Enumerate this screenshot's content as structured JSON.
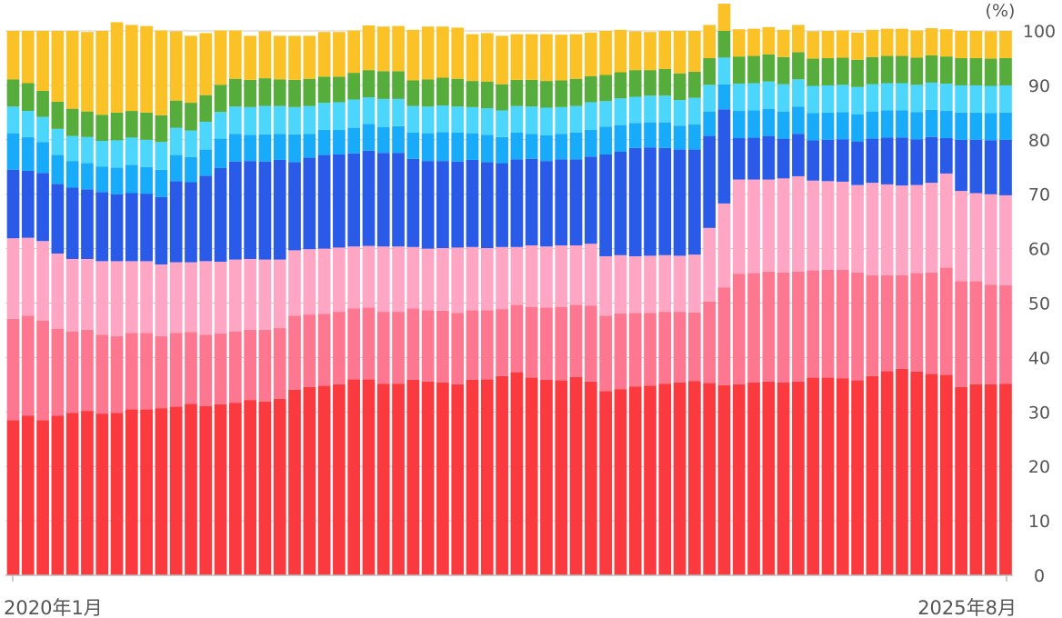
{
  "chart_data": {
    "type": "bar",
    "stacked": true,
    "normalized": true,
    "y_unit": "(%)",
    "ylim": [
      0,
      100
    ],
    "y_ticks": [
      0,
      10,
      20,
      30,
      40,
      50,
      60,
      70,
      80,
      90,
      100
    ],
    "x_start_label": "2020年1月",
    "x_end_label": "2025年8月",
    "grid": true,
    "legend": "none",
    "colors": [
      "#fa3a3e",
      "#fe7790",
      "#fea6c4",
      "#2a5ae8",
      "#17abf9",
      "#4dd6fb",
      "#56ad3c",
      "#fac226"
    ],
    "series": [
      {
        "values": [
          28.5,
          29.3,
          28.5,
          29.3,
          29.8,
          30.2,
          29.7,
          29.8,
          30.5,
          30.5,
          30.7,
          31.0,
          31.5,
          31.1,
          31.4,
          31.7,
          32.2,
          31.9,
          32.4,
          34.1,
          34.6,
          34.8,
          35.1,
          36.0,
          36.0,
          35.2,
          35.2,
          35.9,
          35.6,
          35.4,
          35.1,
          35.9,
          36.0,
          36.6,
          37.3,
          36.3,
          35.9,
          35.8,
          36.4,
          35.6,
          33.8,
          34.2,
          34.7,
          34.8,
          35.2,
          35.4,
          35.7,
          35.3,
          34.9,
          35.1,
          35.4,
          35.6,
          35.4,
          35.6,
          36.3,
          36.3,
          36.2,
          35.8,
          36.6,
          37.5,
          37.9,
          37.4,
          37.0,
          36.8,
          34.6,
          35.1,
          35.1,
          35.2
        ]
      },
      {
        "values": [
          18.6,
          18.4,
          18.3,
          16.0,
          15.0,
          14.9,
          14.5,
          14.1,
          14.0,
          14.0,
          13.2,
          13.5,
          13.2,
          13.1,
          13.0,
          13.1,
          12.9,
          13.2,
          13.0,
          13.6,
          13.3,
          13.2,
          13.3,
          13.0,
          13.2,
          13.2,
          13.2,
          13.1,
          13.1,
          13.2,
          13.1,
          12.8,
          12.7,
          12.3,
          12.4,
          13.0,
          13.3,
          13.5,
          13.3,
          13.9,
          13.9,
          13.9,
          13.5,
          13.4,
          13.2,
          13.0,
          12.6,
          15.0,
          18.0,
          20.3,
          20.1,
          20.2,
          20.2,
          20.2,
          19.7,
          19.8,
          19.9,
          19.8,
          18.5,
          17.6,
          17.2,
          18.1,
          18.6,
          19.7,
          19.4,
          18.9,
          18.3,
          18.1
        ]
      },
      {
        "values": [
          14.8,
          14.3,
          14.6,
          13.8,
          13.3,
          13.0,
          13.5,
          13.8,
          13.2,
          13.2,
          13.2,
          13.0,
          12.8,
          13.5,
          13.2,
          13.2,
          13.0,
          12.9,
          12.6,
          12.0,
          12.0,
          12.0,
          11.8,
          11.4,
          11.3,
          12.0,
          12.0,
          11.3,
          11.3,
          11.5,
          12.0,
          11.6,
          11.4,
          11.4,
          10.6,
          11.3,
          11.2,
          11.3,
          10.9,
          11.4,
          10.9,
          10.7,
          10.4,
          10.5,
          10.4,
          10.3,
          10.6,
          13.5,
          15.4,
          17.3,
          17.2,
          16.9,
          17.3,
          17.5,
          16.5,
          16.3,
          16.2,
          16.1,
          17.0,
          16.7,
          16.5,
          16.2,
          16.5,
          17.3,
          16.6,
          16.2,
          16.6,
          16.5
        ]
      },
      {
        "values": [
          12.6,
          12.3,
          12.5,
          12.8,
          13.1,
          12.8,
          12.7,
          12.3,
          12.5,
          12.4,
          12.4,
          14.9,
          14.7,
          15.7,
          17.2,
          18.0,
          18.0,
          18.0,
          18.3,
          16.2,
          16.8,
          17.2,
          17.1,
          17.1,
          17.5,
          17.2,
          17.2,
          16.2,
          16.1,
          16.0,
          15.8,
          16.0,
          15.8,
          15.4,
          16.1,
          15.9,
          15.7,
          15.8,
          15.8,
          16.0,
          18.7,
          19.0,
          19.9,
          19.9,
          19.7,
          19.5,
          19.3,
          16.9,
          17.3,
          7.6,
          7.7,
          8.0,
          7.3,
          7.8,
          7.4,
          7.6,
          7.8,
          8.0,
          8.1,
          8.6,
          8.8,
          8.4,
          8.4,
          6.5,
          9.4,
          9.8,
          9.9,
          10.2
        ]
      },
      {
        "values": [
          6.7,
          6.2,
          5.7,
          5.3,
          4.9,
          4.8,
          4.7,
          4.9,
          5.2,
          4.9,
          5.0,
          4.8,
          4.6,
          4.8,
          5.4,
          5.1,
          4.8,
          5.0,
          4.8,
          5.1,
          4.4,
          4.6,
          4.5,
          4.7,
          4.9,
          4.7,
          4.9,
          4.8,
          5.1,
          5.3,
          5.3,
          4.9,
          5.0,
          4.8,
          4.9,
          4.6,
          4.7,
          4.7,
          4.9,
          4.9,
          5.1,
          4.9,
          4.6,
          4.6,
          4.7,
          4.4,
          4.6,
          4.5,
          4.6,
          5.0,
          5.0,
          5.0,
          5.0,
          5.0,
          5.0,
          5.0,
          5.0,
          5.0,
          5.0,
          5.0,
          5.0,
          5.0,
          5.0,
          5.0,
          5.0,
          5.0,
          5.0,
          5.0
        ]
      },
      {
        "values": [
          4.9,
          4.8,
          4.6,
          4.8,
          4.6,
          4.8,
          4.7,
          5.0,
          5.0,
          5.0,
          5.1,
          5.0,
          4.9,
          5.1,
          4.9,
          5.0,
          5.1,
          5.2,
          5.1,
          5.0,
          5.1,
          5.0,
          5.1,
          5.2,
          4.9,
          5.2,
          5.0,
          4.9,
          4.9,
          4.9,
          4.8,
          4.8,
          4.9,
          4.9,
          4.9,
          5.0,
          5.1,
          4.9,
          4.9,
          5.1,
          4.7,
          4.9,
          4.8,
          4.9,
          4.9,
          4.7,
          4.9,
          4.9,
          4.9,
          5.0,
          5.0,
          5.0,
          5.0,
          5.0,
          5.0,
          5.0,
          5.0,
          5.0,
          5.0,
          5.0,
          5.0,
          5.0,
          5.0,
          5.0,
          5.0,
          5.0,
          5.0,
          5.0
        ]
      },
      {
        "values": [
          5.0,
          5.1,
          4.8,
          5.0,
          5.0,
          4.7,
          4.8,
          5.1,
          4.9,
          5.0,
          4.9,
          5.0,
          5.1,
          4.9,
          5.0,
          5.1,
          5.0,
          5.1,
          4.9,
          5.0,
          5.0,
          4.8,
          4.7,
          4.9,
          5.0,
          5.1,
          5.1,
          4.7,
          5.0,
          5.1,
          5.1,
          4.8,
          4.9,
          4.8,
          4.8,
          4.9,
          4.9,
          4.9,
          5.0,
          4.8,
          4.8,
          4.8,
          4.9,
          4.7,
          4.9,
          4.9,
          4.8,
          4.9,
          4.9,
          5.0,
          5.0,
          5.0,
          5.0,
          5.0,
          5.0,
          5.0,
          5.0,
          5.0,
          5.0,
          5.0,
          5.0,
          5.0,
          5.0,
          5.0,
          5.0,
          5.0,
          5.0,
          5.0
        ]
      },
      {
        "values": [
          8.9,
          9.6,
          11.0,
          13.0,
          14.3,
          14.6,
          15.4,
          16.6,
          15.8,
          15.9,
          15.6,
          12.7,
          12.3,
          11.4,
          10.0,
          8.9,
          8.1,
          8.6,
          8.0,
          8.1,
          7.9,
          8.2,
          8.2,
          7.8,
          8.2,
          8.2,
          8.3,
          9.3,
          9.7,
          9.4,
          9.4,
          8.6,
          8.9,
          8.9,
          8.4,
          8.4,
          8.6,
          8.4,
          8.2,
          8.0,
          8.1,
          7.8,
          7.1,
          7.0,
          7.0,
          7.8,
          7.5,
          6.1,
          5.0,
          5.0,
          5.0,
          5.0,
          5.0,
          5.0,
          5.0,
          5.0,
          5.0,
          5.0,
          5.0,
          5.0,
          5.0,
          5.0,
          5.0,
          5.0,
          5.0,
          5.0,
          5.0,
          5.0
        ]
      }
    ]
  }
}
